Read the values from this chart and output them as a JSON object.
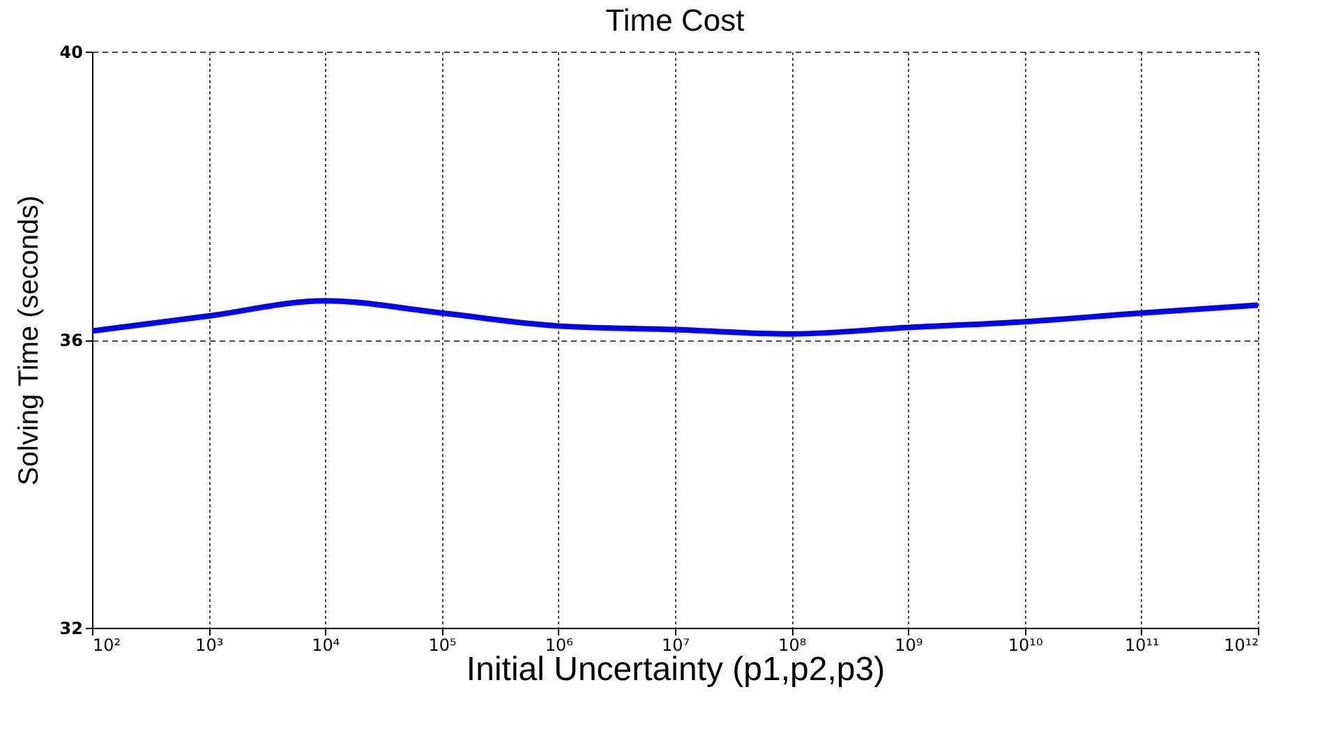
{
  "chart_data": {
    "type": "line",
    "title": "Time Cost",
    "xlabel": "Initial Uncertainty (p1,p2,p3)",
    "ylabel": "Solving Time (seconds)",
    "x": [
      100,
      1000,
      10000,
      100000,
      1000000,
      10000000,
      100000000,
      1000000000,
      10000000000,
      100000000000,
      1000000000000
    ],
    "series": [
      {
        "color": "#0000ff",
        "values": [
          36.12,
          36.33,
          36.54,
          36.37,
          36.19,
          36.14,
          36.08,
          36.17,
          36.25,
          36.37,
          36.48
        ]
      }
    ],
    "log": "x",
    "xlim": [
      100,
      1000000000000
    ],
    "ylim": [
      32,
      40
    ],
    "yticks": [
      32,
      36,
      40
    ],
    "xticks": [
      {
        "value": 100,
        "label": "10²"
      },
      {
        "value": 1000,
        "label": "10³"
      },
      {
        "value": 10000,
        "label": "10⁴"
      },
      {
        "value": 100000,
        "label": "10⁵"
      },
      {
        "value": 1000000,
        "label": "10⁶"
      },
      {
        "value": 10000000,
        "label": "10⁷"
      },
      {
        "value": 100000000,
        "label": "10⁸"
      },
      {
        "value": 1000000000,
        "label": "10⁹"
      },
      {
        "value": 10000000000,
        "label": "10¹⁰"
      },
      {
        "value": 100000000000,
        "label": "10¹¹"
      },
      {
        "value": 1000000000000,
        "label": "10¹²"
      }
    ],
    "grid": true,
    "marker": "none",
    "line_style": "solid"
  }
}
